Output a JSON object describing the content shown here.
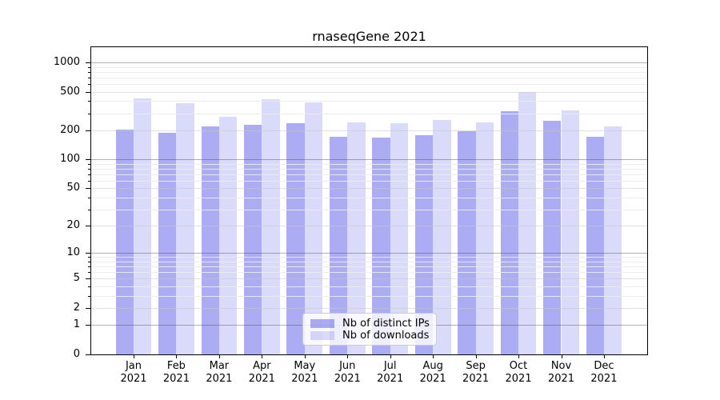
{
  "header": {
    "title": "rnaseqGene 2021"
  },
  "chart_data": {
    "type": "bar",
    "title": "rnaseqGene 2021",
    "x_axis": {
      "months": [
        "Jan",
        "Feb",
        "Mar",
        "Apr",
        "May",
        "Jun",
        "Jul",
        "Aug",
        "Sep",
        "Oct",
        "Nov",
        "Dec"
      ],
      "year": "2021"
    },
    "y_axis": {
      "scale": "symlog, position = log10(1+v)",
      "tick_values": [
        0,
        1,
        2,
        5,
        10,
        20,
        50,
        100,
        200,
        500,
        1000
      ],
      "minor_values": [
        3,
        4,
        6,
        7,
        8,
        9,
        30,
        40,
        60,
        70,
        80,
        90,
        300,
        400,
        600,
        700,
        800,
        900
      ],
      "ylim": [
        0,
        1400
      ],
      "grid": true
    },
    "series": [
      {
        "name": "Nb of distinct IPs",
        "color": "rgba(70,70,230,0.45)",
        "values": [
          205,
          190,
          218,
          229,
          236,
          173,
          168,
          177,
          196,
          313,
          249,
          172
        ]
      },
      {
        "name": "Nb of downloads",
        "color": "rgba(70,70,230,0.20)",
        "values": [
          426,
          380,
          277,
          416,
          386,
          240,
          238,
          258,
          240,
          498,
          320,
          221
        ]
      }
    ],
    "legend_position": "lower center"
  },
  "colors": {
    "decade_gridline": "rgba(70,70,70,0.42)",
    "labeled_gridline": "rgba(200,200,200,0.55)",
    "minor_gridline": "rgba(235,235,235,0.9)",
    "axis": "#000000"
  }
}
